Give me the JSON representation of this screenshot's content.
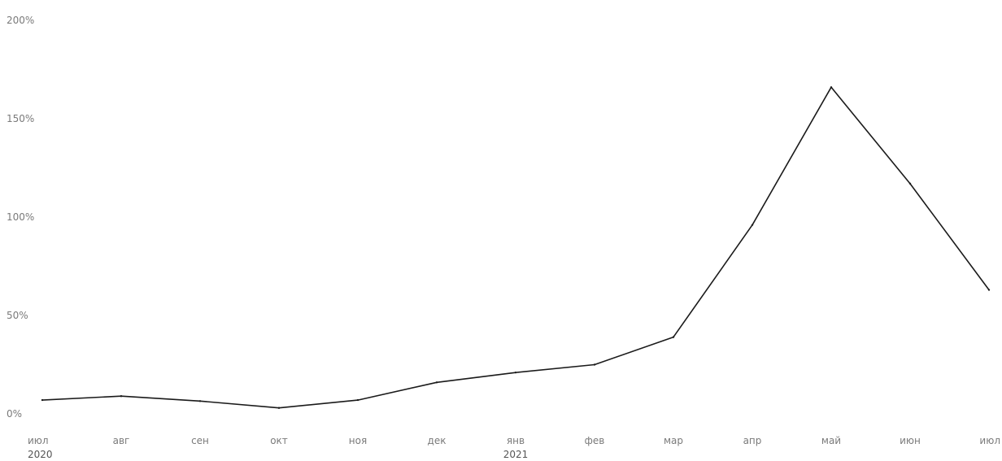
{
  "chart_data": {
    "type": "line",
    "title": "",
    "xlabel": "",
    "ylabel": "",
    "categories": [
      "июл",
      "авг",
      "сен",
      "окт",
      "ноя",
      "дек",
      "янв",
      "фев",
      "мар",
      "апр",
      "май",
      "июн",
      "июл"
    ],
    "year_labels": [
      {
        "text": "2020",
        "category_index": 0
      },
      {
        "text": "2021",
        "category_index": 6
      }
    ],
    "y_ticks": [
      "0%",
      "50%",
      "100%",
      "150%",
      "200%"
    ],
    "y_tick_values": [
      0,
      50,
      100,
      150,
      200
    ],
    "ylim": [
      0,
      200
    ],
    "grid": false,
    "legend": "none",
    "series": [
      {
        "values": [
          7,
          9,
          6.5,
          3,
          7,
          16,
          21,
          25,
          39,
          96,
          166,
          117,
          63
        ],
        "color": "#1a1a1a"
      }
    ]
  }
}
